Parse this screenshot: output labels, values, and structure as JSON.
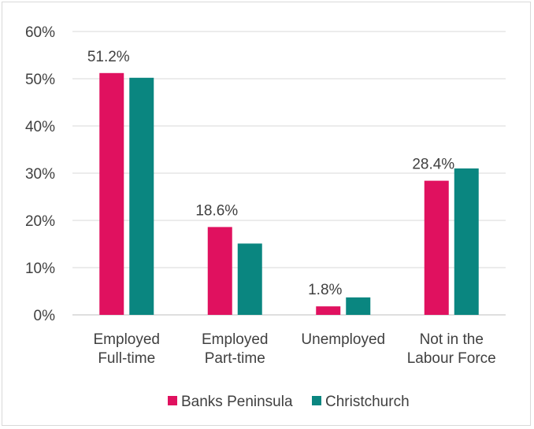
{
  "chart_data": {
    "type": "bar",
    "title": "",
    "xlabel": "",
    "ylabel": "",
    "ylim": [
      0,
      0.6
    ],
    "yticks": [
      "0%",
      "10%",
      "20%",
      "30%",
      "40%",
      "50%",
      "60%"
    ],
    "grid": true,
    "legend_position": "bottom",
    "categories": [
      [
        "Employed",
        "Full-time"
      ],
      [
        "Employed",
        "Part-time"
      ],
      [
        "Unemployed"
      ],
      [
        "Not in the",
        "Labour Force"
      ]
    ],
    "series": [
      {
        "name": "Banks Peninsula",
        "color": "#e0115f",
        "values": [
          0.512,
          0.186,
          0.018,
          0.284
        ],
        "labels": [
          "51.2%",
          "18.6%",
          "1.8%",
          "28.4%"
        ]
      },
      {
        "name": "Christchurch",
        "color": "#0a8680",
        "values": [
          0.502,
          0.151,
          0.037,
          0.31
        ],
        "labels": [
          "",
          "",
          "",
          ""
        ]
      }
    ]
  }
}
